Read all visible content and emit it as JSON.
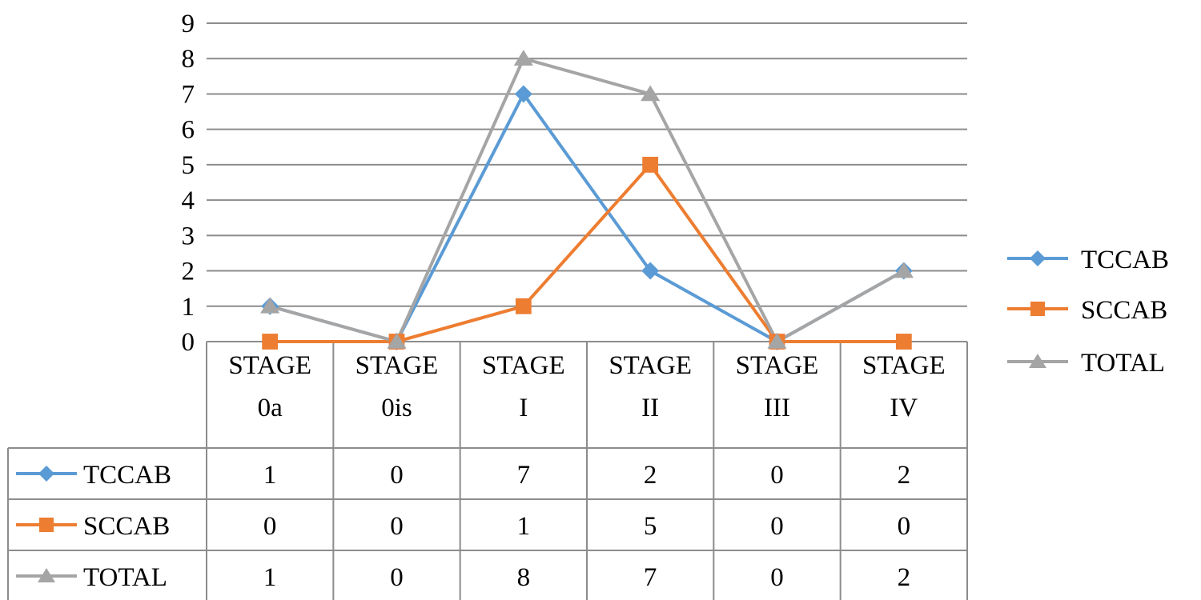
{
  "chart_data": {
    "type": "line",
    "categories": [
      "STAGE 0a",
      "STAGE 0is",
      "STAGE I",
      "STAGE II",
      "STAGE III",
      "STAGE IV"
    ],
    "category_lines": [
      [
        "STAGE",
        "0a"
      ],
      [
        "STAGE",
        "0is"
      ],
      [
        "STAGE",
        "I"
      ],
      [
        "STAGE",
        "II"
      ],
      [
        "STAGE",
        "III"
      ],
      [
        "STAGE",
        "IV"
      ]
    ],
    "series": [
      {
        "name": "TCCAB",
        "values": [
          1,
          0,
          7,
          2,
          0,
          2
        ],
        "color": "#5b9bd5",
        "marker": "diamond"
      },
      {
        "name": "SCCAB",
        "values": [
          0,
          0,
          1,
          5,
          0,
          0
        ],
        "color": "#ed7d31",
        "marker": "square"
      },
      {
        "name": "TOTAL",
        "values": [
          1,
          0,
          8,
          7,
          0,
          2
        ],
        "color": "#a5a5a5",
        "marker": "triangle"
      }
    ],
    "ylim": [
      0,
      9
    ],
    "yticks": [
      0,
      1,
      2,
      3,
      4,
      5,
      6,
      7,
      8,
      9
    ],
    "grid": true,
    "legend_position": "right",
    "data_table": true,
    "title": "",
    "xlabel": "",
    "ylabel": ""
  }
}
